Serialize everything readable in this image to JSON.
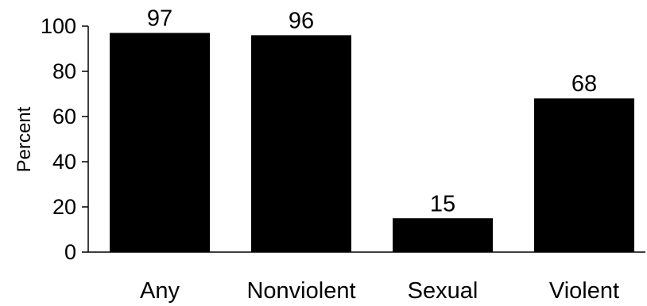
{
  "chart_data": {
    "type": "bar",
    "title": "",
    "xlabel": "",
    "ylabel": "Percent",
    "categories": [
      "Any",
      "Nonviolent",
      "Sexual",
      "Violent"
    ],
    "values": [
      97,
      96,
      15,
      68
    ],
    "data_labels": [
      "97",
      "96",
      "15",
      "68"
    ],
    "ylim": [
      0,
      100
    ],
    "yticks": [
      0,
      20,
      40,
      60,
      80,
      100
    ],
    "grid": false,
    "legend": "none",
    "bar_color": "#000000"
  }
}
